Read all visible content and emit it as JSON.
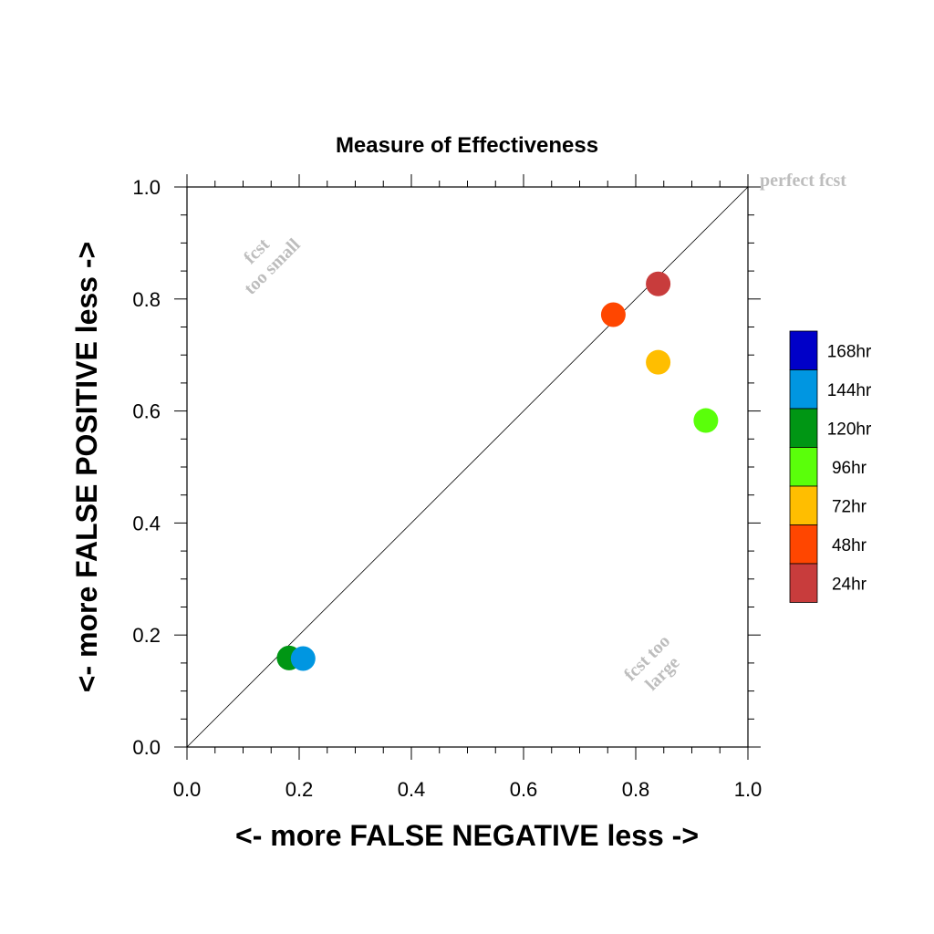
{
  "chart_data": {
    "type": "scatter",
    "title": "Measure of Effectiveness",
    "xlabel": "<- more   FALSE NEGATIVE   less ->",
    "ylabel": "<- more   FALSE POSITIVE   less ->",
    "xlim": [
      0.0,
      1.0
    ],
    "ylim": [
      0.0,
      1.0
    ],
    "x_ticks": [
      "0.0",
      "0.2",
      "0.4",
      "0.6",
      "0.8",
      "1.0"
    ],
    "y_ticks": [
      "0.0",
      "0.2",
      "0.4",
      "0.6",
      "0.8",
      "1.0"
    ],
    "grid": false,
    "diagonal_line": true,
    "annotations": {
      "perfect": "perfect fcst",
      "too_small_line1": "fcst",
      "too_small_line2": "too small",
      "too_large_line1": "fcst too",
      "too_large_line2": "large"
    },
    "legend": {
      "placement": "right",
      "entries": [
        {
          "label": "168hr",
          "color": "#0000c8"
        },
        {
          "label": "144hr",
          "color": "#0096e1"
        },
        {
          "label": "120hr",
          "color": "#009614"
        },
        {
          "label": "96hr",
          "color": "#5aff0a"
        },
        {
          "label": "72hr",
          "color": "#ffbe00"
        },
        {
          "label": "48hr",
          "color": "#ff4600"
        },
        {
          "label": "24hr",
          "color": "#c83c3c"
        }
      ]
    },
    "points": [
      {
        "series": "24hr",
        "x": 0.84,
        "y": 0.827,
        "color": "#c83c3c"
      },
      {
        "series": "48hr",
        "x": 0.76,
        "y": 0.772,
        "color": "#ff4600"
      },
      {
        "series": "72hr",
        "x": 0.84,
        "y": 0.687,
        "color": "#ffbe00"
      },
      {
        "series": "96hr",
        "x": 0.925,
        "y": 0.583,
        "color": "#5aff0a"
      },
      {
        "series": "120hr",
        "x": 0.182,
        "y": 0.159,
        "color": "#009614"
      },
      {
        "series": "144hr",
        "x": 0.207,
        "y": 0.158,
        "color": "#0096e1"
      }
    ]
  }
}
